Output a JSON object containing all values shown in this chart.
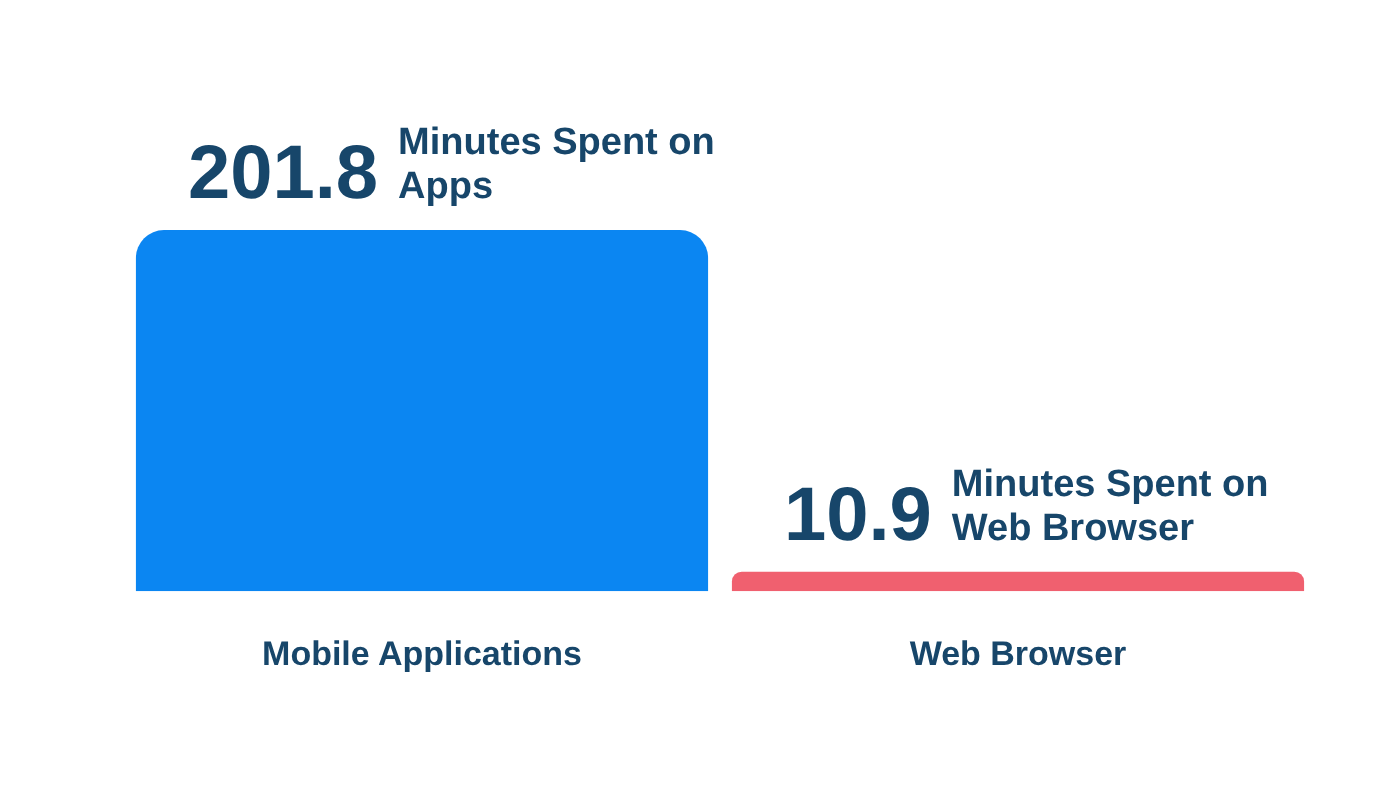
{
  "chart_data": {
    "type": "bar",
    "categories": [
      "Mobile Applications",
      "Web Browser"
    ],
    "values": [
      201.8,
      10.9
    ],
    "colors": [
      "#0b86f2",
      "#f0606f"
    ],
    "data_labels": true,
    "annotations": [
      {
        "text": "Minutes Spent on Apps",
        "x": "Mobile Applications",
        "y": 201.8
      },
      {
        "text": "Minutes Spent on Web Browser",
        "x": "Web Browser",
        "y": 10.9
      }
    ]
  }
}
